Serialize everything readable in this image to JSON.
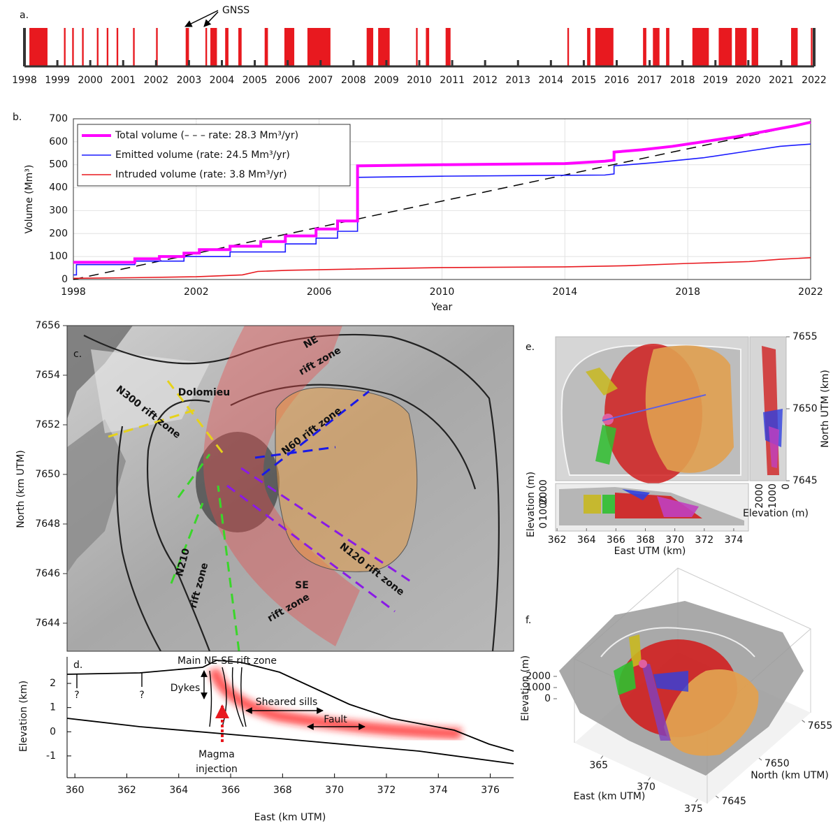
{
  "chart_data": [
    {
      "type": "timeline",
      "label": "a.",
      "annotation": "GNSS",
      "color": "#e8191f",
      "xlim": [
        1998,
        2022
      ],
      "xticks": [
        1998,
        1999,
        2000,
        2001,
        2002,
        2003,
        2004,
        2005,
        2006,
        2007,
        2008,
        2009,
        2010,
        2011,
        2012,
        2013,
        2014,
        2015,
        2016,
        2017,
        2018,
        2019,
        2020,
        2021,
        2022
      ],
      "eruptions": [
        [
          1998.15,
          1998.7
        ],
        [
          1999.2,
          1999.25
        ],
        [
          1999.45,
          1999.5
        ],
        [
          1999.75,
          1999.8
        ],
        [
          2000.2,
          2000.25
        ],
        [
          2000.5,
          2000.55
        ],
        [
          2000.8,
          2000.85
        ],
        [
          2001.3,
          2001.35
        ],
        [
          2002.0,
          2002.05
        ],
        [
          2002.9,
          2003.0
        ],
        [
          2003.5,
          2003.55
        ],
        [
          2003.65,
          2003.85
        ],
        [
          2004.1,
          2004.2
        ],
        [
          2004.5,
          2004.6
        ],
        [
          2005.3,
          2005.4
        ],
        [
          2005.9,
          2006.2
        ],
        [
          2006.6,
          2007.3
        ],
        [
          2008.4,
          2008.6
        ],
        [
          2008.75,
          2009.1
        ],
        [
          2009.9,
          2009.95
        ],
        [
          2010.2,
          2010.3
        ],
        [
          2010.8,
          2010.95
        ],
        [
          2014.5,
          2014.55
        ],
        [
          2015.1,
          2015.2
        ],
        [
          2015.35,
          2015.9
        ],
        [
          2016.8,
          2016.9
        ],
        [
          2017.1,
          2017.3
        ],
        [
          2017.5,
          2017.6
        ],
        [
          2018.3,
          2018.8
        ],
        [
          2019.1,
          2019.5
        ],
        [
          2019.6,
          2019.95
        ],
        [
          2020.1,
          2020.3
        ],
        [
          2021.3,
          2021.5
        ],
        [
          2021.9,
          2021.95
        ]
      ]
    },
    {
      "type": "line",
      "label": "b.",
      "xlabel": "Year",
      "ylabel": "Volume (Mm³)",
      "xlim": [
        1998,
        2022
      ],
      "xticks": [
        1998,
        2002,
        2006,
        2010,
        2014,
        2018,
        2022
      ],
      "ylim": [
        0,
        700
      ],
      "yticks": [
        0,
        100,
        200,
        300,
        400,
        500,
        600,
        700
      ],
      "grid": true,
      "legend": "top-left",
      "series": [
        {
          "name": "Total volume (– – – rate: 28.3 Mm³/yr)",
          "color": "#ff00ff",
          "x": [
            1998,
            2000,
            2000,
            2000.8,
            2000.8,
            2001.6,
            2001.6,
            2002.1,
            2002.1,
            2003.1,
            2003.1,
            2004.1,
            2004.1,
            2004.9,
            2004.9,
            2005.9,
            2005.9,
            2006.6,
            2006.6,
            2007.25,
            2007.25,
            2010,
            2014,
            2015.3,
            2015.6,
            2015.6,
            2016.5,
            2017.5,
            2018.5,
            2019.5,
            2020.5,
            2021.5,
            2022
          ],
          "values": [
            75,
            75,
            90,
            90,
            100,
            100,
            115,
            115,
            130,
            130,
            145,
            145,
            165,
            165,
            190,
            190,
            220,
            220,
            255,
            255,
            495,
            500,
            505,
            515,
            520,
            555,
            565,
            580,
            600,
            620,
            645,
            670,
            685
          ]
        },
        {
          "name": "Emitted volume (rate: 24.5 Mm³/yr)",
          "color": "#1a1aff",
          "x": [
            1998,
            1998.1,
            1998.1,
            2000,
            2000,
            2001.6,
            2001.6,
            2003.1,
            2003.1,
            2004.9,
            2004.9,
            2005.9,
            2005.9,
            2006.6,
            2006.6,
            2007.25,
            2007.25,
            2010,
            2015.3,
            2015.6,
            2015.6,
            2017,
            2018.5,
            2020,
            2021,
            2022
          ],
          "values": [
            20,
            20,
            65,
            65,
            80,
            80,
            100,
            100,
            120,
            120,
            155,
            155,
            180,
            180,
            210,
            210,
            445,
            450,
            455,
            460,
            495,
            510,
            530,
            560,
            580,
            590
          ]
        },
        {
          "name": "Intruded volume (rate: 3.8 Mm³/yr)",
          "color": "#e8191f",
          "x": [
            1998,
            2000,
            2002,
            2003.5,
            2004,
            2005,
            2007,
            2010,
            2014,
            2016,
            2018,
            2020,
            2021,
            2022
          ],
          "values": [
            5,
            8,
            12,
            20,
            35,
            40,
            45,
            52,
            55,
            60,
            70,
            78,
            88,
            95
          ]
        }
      ],
      "trend": {
        "color": "#000000",
        "x": [
          1998,
          2022
        ],
        "values": [
          0,
          683
        ]
      }
    },
    {
      "type": "map",
      "label": "c.",
      "ylabel": "North (km UTM)",
      "ylim": [
        7642.87,
        7656
      ],
      "yticks": [
        7644,
        7646,
        7648,
        7650,
        7652,
        7654,
        7656
      ],
      "annotations": [
        "NE",
        "rift zone",
        "N300 rift zone",
        "Dolomieu",
        "N60 rift zone",
        "N120 rift zone",
        "N210",
        "rift zone",
        "SE",
        "rift zone"
      ]
    },
    {
      "type": "section",
      "label": "d.",
      "xlabel": "East (km UTM)",
      "ylabel": "Elevation (km)",
      "xlim": [
        359.7,
        376.9
      ],
      "xticks": [
        360,
        362,
        364,
        366,
        368,
        370,
        372,
        374,
        376
      ],
      "ylim": [
        -1.9,
        3.1
      ],
      "yticks": [
        -1,
        0,
        1,
        2
      ],
      "annotations": [
        "Main NE-SE rift zone",
        "Dykes",
        "Sheared sills",
        "Fault",
        "Magma",
        "injection",
        "?",
        "?"
      ]
    },
    {
      "type": "views",
      "label": "e.",
      "xlabel": "East UTM (km)",
      "ylabel": "North UTM (km)",
      "zlabel": "Elevation (m)",
      "xlim": [
        361.9,
        375
      ],
      "xticks": [
        362,
        364,
        366,
        368,
        370,
        372,
        374
      ],
      "ylim": [
        7645,
        7655
      ],
      "yticks": [
        7645,
        7650,
        7655
      ],
      "zlim": [
        0,
        2000
      ],
      "zticks": [
        2000,
        1000,
        0
      ]
    },
    {
      "type": "block3d",
      "label": "f.",
      "xlabel": "East (km UTM)",
      "ylabel": "North (km UTM)",
      "zlabel": "Elevation (m)",
      "xlim": [
        362,
        376
      ],
      "xticks": [
        365,
        370,
        375
      ],
      "ylim": [
        7644,
        7656
      ],
      "yticks": [
        7645,
        7650,
        7655
      ],
      "zlim": [
        0,
        2000
      ],
      "zticks": [
        2000,
        1000,
        0
      ]
    }
  ]
}
